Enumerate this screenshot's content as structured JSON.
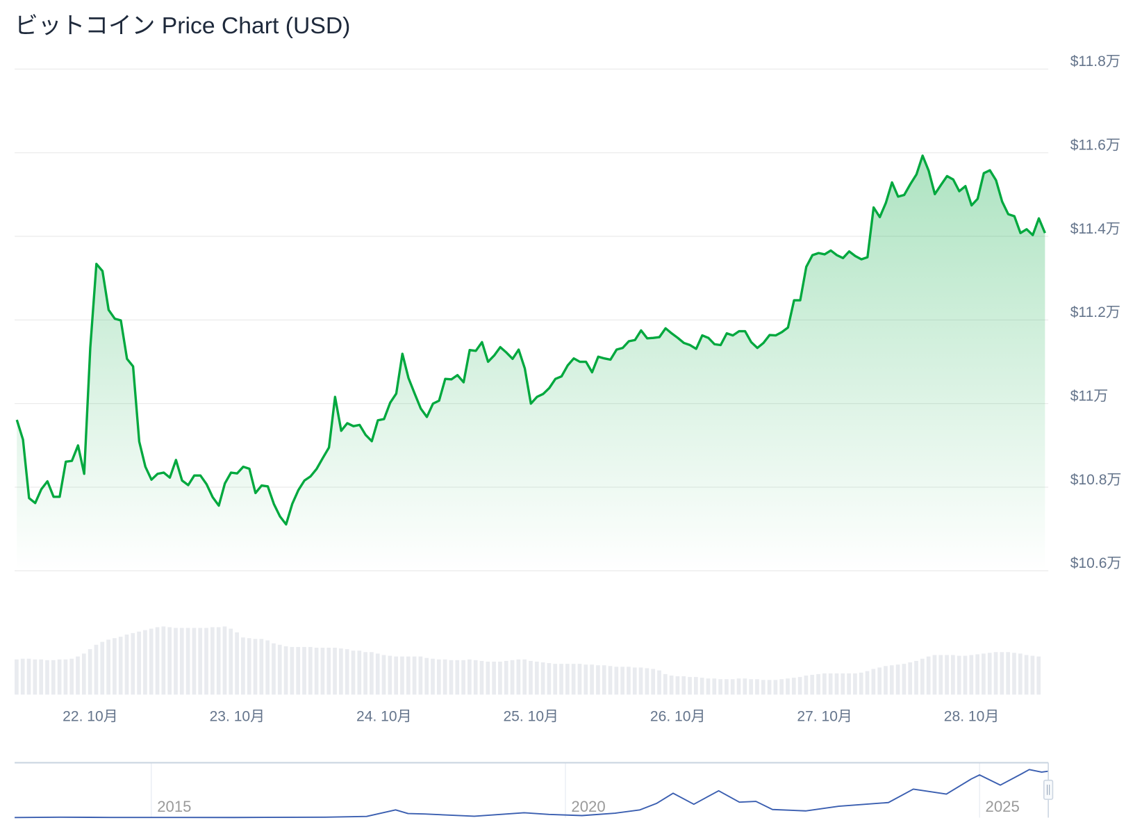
{
  "title": "ビットコイン Price Chart (USD)",
  "colors": {
    "line": "#00a83e",
    "fill": "#00a83e",
    "grid": "#ebebeb",
    "volume": "#e9ebef",
    "navigator_line": "#3a5eb0",
    "navigator_border": "#cbd5e1"
  },
  "chart_data": {
    "type": "area",
    "title": "ビットコイン Price Chart (USD)",
    "ylabel": "",
    "xlabel": "",
    "ylim": [
      106000,
      118000
    ],
    "y_ticks": [
      {
        "value": 118000,
        "label": "$11.8万"
      },
      {
        "value": 116000,
        "label": "$11.6万"
      },
      {
        "value": 114000,
        "label": "$11.4万"
      },
      {
        "value": 112000,
        "label": "$11.2万"
      },
      {
        "value": 110000,
        "label": "$11万"
      },
      {
        "value": 108000,
        "label": "$10.8万"
      },
      {
        "value": 106000,
        "label": "$10.6万"
      }
    ],
    "x_ticks": [
      "22. 10月",
      "23. 10月",
      "24. 10月",
      "25. 10月",
      "26. 10月",
      "27. 10月",
      "28. 10月"
    ],
    "x_interval": "1 hour",
    "grid": true,
    "values": [
      109610,
      109140,
      107740,
      107620,
      107950,
      108140,
      107770,
      107770,
      108610,
      108630,
      109000,
      108320,
      111330,
      113340,
      113170,
      112240,
      112030,
      111990,
      111070,
      110890,
      109090,
      108490,
      108180,
      108320,
      108350,
      108230,
      108650,
      108160,
      108050,
      108280,
      108280,
      108070,
      107760,
      107560,
      108090,
      108350,
      108330,
      108490,
      108440,
      107860,
      108040,
      108020,
      107600,
      107300,
      107110,
      107600,
      107930,
      108160,
      108260,
      108440,
      108700,
      108950,
      110160,
      109350,
      109530,
      109460,
      109490,
      109250,
      109100,
      109600,
      109630,
      110020,
      110240,
      111190,
      110610,
      110240,
      109880,
      109680,
      110000,
      110070,
      110590,
      110580,
      110680,
      110510,
      111280,
      111260,
      111470,
      111000,
      111150,
      111350,
      111220,
      111070,
      111290,
      110840,
      110000,
      110160,
      110230,
      110370,
      110590,
      110650,
      110910,
      111080,
      111000,
      111000,
      110750,
      111120,
      111080,
      111050,
      111290,
      111330,
      111490,
      111520,
      111750,
      111560,
      111570,
      111590,
      111800,
      111680,
      111570,
      111450,
      111400,
      111310,
      111630,
      111570,
      111420,
      111400,
      111680,
      111630,
      111730,
      111730,
      111470,
      111330,
      111450,
      111640,
      111630,
      111710,
      111820,
      112470,
      112470,
      113270,
      113550,
      113600,
      113570,
      113660,
      113550,
      113480,
      113640,
      113530,
      113450,
      113500,
      114690,
      114460,
      114800,
      115290,
      114950,
      114990,
      115250,
      115480,
      115930,
      115570,
      115010,
      115230,
      115440,
      115360,
      115080,
      115200,
      114740,
      114900,
      115510,
      115580,
      115340,
      114830,
      114530,
      114480,
      114080,
      114170,
      114030,
      114430,
      114080
    ],
    "volume_relative": [
      48,
      49,
      49,
      48,
      48,
      47,
      47,
      48,
      48,
      49,
      52,
      56,
      62,
      68,
      72,
      75,
      77,
      79,
      82,
      84,
      86,
      88,
      90,
      92,
      93,
      92,
      91,
      91,
      91,
      91,
      91,
      91,
      92,
      92,
      93,
      90,
      85,
      78,
      77,
      76,
      76,
      74,
      70,
      68,
      66,
      65,
      65,
      65,
      65,
      64,
      64,
      64,
      64,
      63,
      62,
      60,
      60,
      58,
      58,
      56,
      54,
      53,
      52,
      52,
      52,
      52,
      52,
      50,
      49,
      48,
      48,
      47,
      47,
      47,
      48,
      47,
      46,
      45,
      45,
      45,
      46,
      47,
      48,
      48,
      46,
      45,
      44,
      43,
      42,
      42,
      42,
      42,
      42,
      41,
      41,
      40,
      40,
      39,
      38,
      38,
      38,
      37,
      37,
      36,
      35,
      33,
      28,
      26,
      25,
      25,
      24,
      24,
      23,
      22,
      22,
      21,
      21,
      21,
      22,
      22,
      21,
      21,
      20,
      20,
      20,
      21,
      22,
      23,
      24,
      26,
      27,
      28,
      29,
      29,
      29,
      29,
      29,
      29,
      30,
      32,
      35,
      37,
      39,
      40,
      41,
      42,
      44,
      46,
      49,
      52,
      54,
      54,
      54,
      54,
      53,
      53,
      54,
      55,
      56,
      57,
      58,
      58,
      58,
      57,
      56,
      54,
      53,
      52
    ],
    "navigator": {
      "x_ticks": [
        "2015",
        "2020",
        "2025"
      ],
      "xlim": [
        2013.35,
        2025.83
      ],
      "ylim": [
        0,
        135000
      ],
      "points": [
        [
          2013.35,
          100
        ],
        [
          2013.9,
          1000
        ],
        [
          2014.5,
          500
        ],
        [
          2016.0,
          450
        ],
        [
          2017.1,
          1000
        ],
        [
          2017.6,
          3000
        ],
        [
          2017.95,
          19000
        ],
        [
          2018.1,
          10000
        ],
        [
          2018.3,
          9000
        ],
        [
          2018.9,
          3500
        ],
        [
          2019.5,
          12000
        ],
        [
          2019.8,
          8000
        ],
        [
          2020.2,
          5000
        ],
        [
          2020.6,
          11000
        ],
        [
          2020.9,
          19000
        ],
        [
          2021.1,
          35000
        ],
        [
          2021.3,
          60000
        ],
        [
          2021.55,
          33000
        ],
        [
          2021.85,
          66000
        ],
        [
          2022.1,
          38000
        ],
        [
          2022.3,
          40000
        ],
        [
          2022.5,
          20000
        ],
        [
          2022.9,
          16500
        ],
        [
          2023.3,
          28000
        ],
        [
          2023.9,
          37000
        ],
        [
          2024.2,
          70000
        ],
        [
          2024.6,
          58000
        ],
        [
          2024.9,
          95000
        ],
        [
          2025.0,
          105000
        ],
        [
          2025.25,
          80000
        ],
        [
          2025.5,
          107000
        ],
        [
          2025.6,
          118000
        ],
        [
          2025.75,
          112000
        ],
        [
          2025.83,
          114000
        ]
      ]
    }
  }
}
